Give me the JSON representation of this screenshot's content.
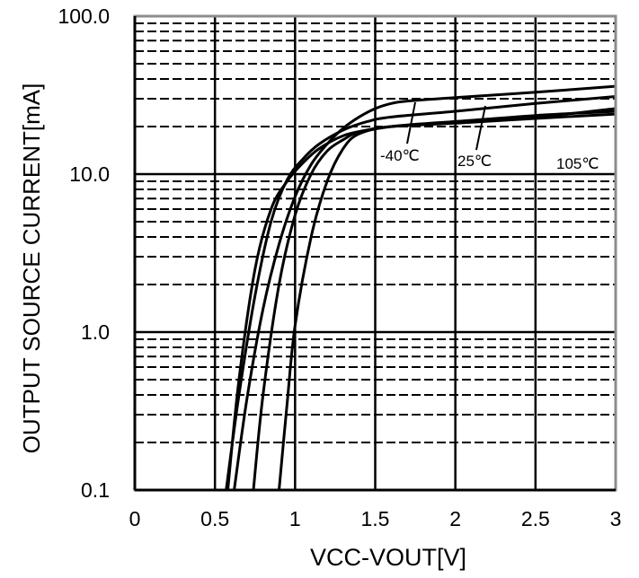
{
  "chart_data": {
    "type": "line",
    "title": "",
    "xlabel": "VCC-VOUT[V]",
    "ylabel": "OUTPUT  SOURCE  CURRENT[mA]",
    "xlim": [
      0,
      3
    ],
    "ylim": [
      0.1,
      100.0
    ],
    "yscale": "log",
    "grid": true,
    "x_ticks": [
      0,
      0.5,
      1,
      1.5,
      2,
      2.5,
      3
    ],
    "x_tick_labels": [
      "0",
      "0.5",
      "1",
      "1.5",
      "2",
      "2.5",
      "3"
    ],
    "y_ticks": [
      0.1,
      1.0,
      10.0,
      100.0
    ],
    "y_tick_labels": [
      "0.1",
      "1.0",
      "10.0",
      "100.0"
    ],
    "series": [
      {
        "name": "-40℃",
        "x": [
          0.62,
          0.7,
          0.8,
          0.9,
          1.0,
          1.1,
          1.2,
          1.3,
          1.4,
          1.5,
          1.6,
          1.7,
          2.0,
          2.5,
          3.0
        ],
        "y": [
          0.1,
          0.38,
          1.4,
          3.6,
          7.2,
          11.5,
          15.5,
          19.5,
          23.0,
          26.0,
          28.0,
          29.0,
          30.5,
          33.0,
          36.0
        ]
      },
      {
        "name": "25℃",
        "x": [
          0.57,
          0.65,
          0.75,
          0.85,
          0.95,
          1.05,
          1.15,
          1.3,
          1.45,
          1.6,
          2.0,
          2.5,
          3.0
        ],
        "y": [
          0.1,
          0.4,
          1.7,
          5.0,
          9.2,
          12.5,
          15.5,
          19.0,
          21.5,
          23.0,
          25.0,
          28.0,
          31.0
        ]
      },
      {
        "name": "105℃",
        "x": [
          0.58,
          0.65,
          0.75,
          0.85,
          0.95,
          1.05,
          1.15,
          1.3,
          1.45,
          1.6,
          2.0,
          2.5,
          3.0
        ],
        "y": [
          0.1,
          0.5,
          2.5,
          6.0,
          9.0,
          11.8,
          14.5,
          17.5,
          19.0,
          20.0,
          21.5,
          23.5,
          25.0
        ]
      },
      {
        "name": "",
        "x": [
          0.74,
          0.8,
          0.9,
          1.0,
          1.1,
          1.2,
          1.3,
          1.4,
          1.6,
          2.0,
          2.5,
          3.0
        ],
        "y": [
          0.1,
          0.4,
          2.0,
          5.5,
          10.0,
          14.0,
          16.5,
          18.5,
          20.0,
          21.0,
          22.5,
          24.0
        ]
      },
      {
        "name": "",
        "x": [
          0.9,
          0.95,
          1.0,
          1.1,
          1.2,
          1.3,
          1.4,
          1.6,
          2.0,
          2.5,
          3.0
        ],
        "y": [
          0.1,
          0.35,
          1.1,
          4.0,
          9.0,
          14.5,
          18.0,
          20.0,
          21.5,
          23.0,
          26.0
        ]
      }
    ],
    "annotations": [
      {
        "text": "-40℃"
      },
      {
        "text": "25℃"
      },
      {
        "text": "105℃"
      }
    ],
    "legend": "none"
  }
}
